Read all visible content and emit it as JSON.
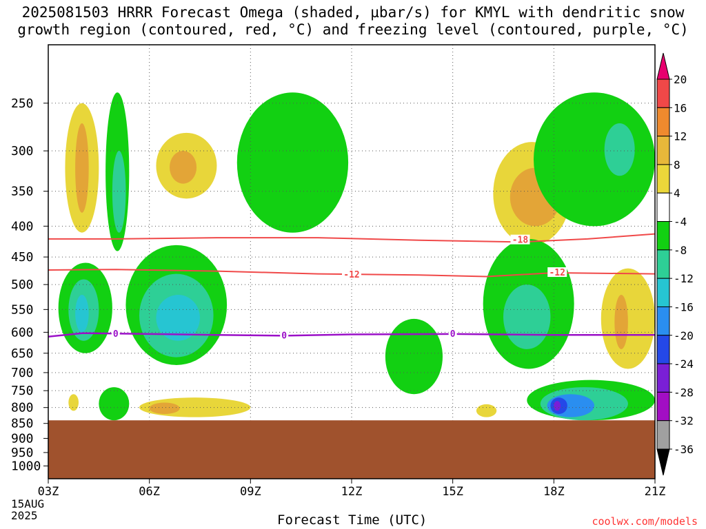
{
  "title_line1": "2025081503 HRRR Forecast Omega (shaded, µbar/s) for KMYL with dendritic snow",
  "title_line2": "growth region (contoured, red, °C) and freezing level (contoured, purple, °C)",
  "credit": "coolwx.com/models",
  "chart_data": {
    "type": "contour",
    "xlabel": "Forecast Time (UTC)",
    "x_ticks": [
      "03Z",
      "06Z",
      "09Z",
      "12Z",
      "15Z",
      "18Z",
      "21Z"
    ],
    "x_tick_hours": [
      3,
      6,
      9,
      12,
      15,
      18,
      21
    ],
    "x_start_label": [
      "15AUG",
      "2025"
    ],
    "x_range_hours": [
      3,
      21
    ],
    "y_ticks": [
      250,
      300,
      350,
      400,
      450,
      500,
      550,
      600,
      650,
      700,
      750,
      800,
      850,
      900,
      950,
      1000
    ],
    "y_range_hPa": [
      200,
      1050
    ],
    "y_scale": "log-pressure",
    "ground_below_hPa": 840,
    "ground_color": "#a0522d",
    "grid": true,
    "colorbar": {
      "labels": [
        "20",
        "16",
        "12",
        "8",
        "4",
        "-4",
        "-8",
        "-12",
        "-16",
        "-20",
        "-24",
        "-28",
        "-32",
        "-36"
      ],
      "colors": [
        "#e8006e",
        "#f04848",
        "#ef8a2e",
        "#e8b83a",
        "#ebd73a",
        "#ffffff",
        "#12d012",
        "#2ecf96",
        "#26c5d2",
        "#2a8ef0",
        "#2448e8",
        "#7a1fd6",
        "#a20ec4",
        "#a0a0a0",
        "#000000"
      ]
    },
    "omega_regions": [
      {
        "level": 4,
        "color": "#e8d63a",
        "hours": [
          3.5,
          4.5
        ],
        "hPa": [
          250,
          410
        ]
      },
      {
        "level": 8,
        "color": "#e3a537",
        "hours": [
          3.8,
          4.2
        ],
        "hPa": [
          270,
          380
        ]
      },
      {
        "level": -4,
        "color": "#12d012",
        "hours": [
          4.7,
          5.4
        ],
        "hPa": [
          240,
          440
        ]
      },
      {
        "level": -8,
        "color": "#2ecf96",
        "hours": [
          4.9,
          5.3
        ],
        "hPa": [
          300,
          410
        ]
      },
      {
        "level": 4,
        "color": "#e8d63a",
        "hours": [
          6.2,
          8.0
        ],
        "hPa": [
          280,
          360
        ]
      },
      {
        "level": 8,
        "color": "#e3a537",
        "hours": [
          6.6,
          7.4
        ],
        "hPa": [
          300,
          340
        ]
      },
      {
        "level": -4,
        "color": "#12d012",
        "hours": [
          8.6,
          11.9
        ],
        "hPa": [
          240,
          410
        ]
      },
      {
        "level": -4,
        "color": "#12d012",
        "hours": [
          3.3,
          4.9
        ],
        "hPa": [
          460,
          650
        ]
      },
      {
        "level": -8,
        "color": "#2ecf96",
        "hours": [
          3.6,
          4.5
        ],
        "hPa": [
          490,
          620
        ]
      },
      {
        "level": -12,
        "color": "#26c5d2",
        "hours": [
          3.8,
          4.2
        ],
        "hPa": [
          520,
          600
        ]
      },
      {
        "level": -4,
        "color": "#12d012",
        "hours": [
          5.3,
          8.3
        ],
        "hPa": [
          430,
          680
        ]
      },
      {
        "level": -8,
        "color": "#2ecf96",
        "hours": [
          5.7,
          7.9
        ],
        "hPa": [
          480,
          660
        ]
      },
      {
        "level": -12,
        "color": "#26c5d2",
        "hours": [
          6.2,
          7.5
        ],
        "hPa": [
          520,
          620
        ]
      },
      {
        "level": -4,
        "color": "#12d012",
        "hours": [
          13.0,
          14.7
        ],
        "hPa": [
          570,
          760
        ]
      },
      {
        "level": 4,
        "color": "#e8d63a",
        "hours": [
          16.2,
          18.5
        ],
        "hPa": [
          290,
          430
        ]
      },
      {
        "level": 8,
        "color": "#e3a537",
        "hours": [
          16.7,
          18.2
        ],
        "hPa": [
          320,
          400
        ]
      },
      {
        "level": -4,
        "color": "#12d012",
        "hours": [
          17.4,
          21.0
        ],
        "hPa": [
          240,
          400
        ]
      },
      {
        "level": -8,
        "color": "#2ecf96",
        "hours": [
          19.5,
          20.4
        ],
        "hPa": [
          270,
          330
        ]
      },
      {
        "level": 4,
        "color": "#e8d63a",
        "hours": [
          19.4,
          21.0
        ],
        "hPa": [
          470,
          690
        ]
      },
      {
        "level": 8,
        "color": "#e3a537",
        "hours": [
          19.8,
          20.2
        ],
        "hPa": [
          520,
          640
        ]
      },
      {
        "level": -4,
        "color": "#12d012",
        "hours": [
          15.9,
          18.6
        ],
        "hPa": [
          420,
          690
        ]
      },
      {
        "level": -8,
        "color": "#2ecf96",
        "hours": [
          16.5,
          17.9
        ],
        "hPa": [
          500,
          640
        ]
      },
      {
        "level": -4,
        "color": "#12d012",
        "hours": [
          17.2,
          21.0
        ],
        "hPa": [
          720,
          840
        ]
      },
      {
        "level": -8,
        "color": "#2ecf96",
        "hours": [
          17.6,
          20.2
        ],
        "hPa": [
          740,
          840
        ]
      },
      {
        "level": -16,
        "color": "#2a8ef0",
        "hours": [
          17.8,
          19.2
        ],
        "hPa": [
          760,
          830
        ]
      },
      {
        "level": -24,
        "color": "#2448e8",
        "hours": [
          17.9,
          18.4
        ],
        "hPa": [
          770,
          820
        ]
      },
      {
        "level": -28,
        "color": "#7a1fd6",
        "hours": [
          18.0,
          18.2
        ],
        "hPa": [
          780,
          810
        ]
      },
      {
        "level": 4,
        "color": "#e8d63a",
        "hours": [
          5.7,
          9.0
        ],
        "hPa": [
          770,
          830
        ]
      },
      {
        "level": 8,
        "color": "#e3a537",
        "hours": [
          6.0,
          6.9
        ],
        "hPa": [
          785,
          820
        ]
      },
      {
        "level": 4,
        "color": "#e8d63a",
        "hours": [
          3.6,
          3.9
        ],
        "hPa": [
          760,
          810
        ]
      },
      {
        "level": 4,
        "color": "#e8d63a",
        "hours": [
          15.7,
          16.3
        ],
        "hPa": [
          790,
          830
        ]
      },
      {
        "level": -4,
        "color": "#12d012",
        "hours": [
          4.5,
          5.4
        ],
        "hPa": [
          740,
          840
        ]
      }
    ],
    "red_contours": [
      {
        "label": "-18",
        "hPa": [
          420,
          420,
          418,
          418,
          422,
          425,
          420,
          412
        ],
        "hours": [
          3,
          5,
          8,
          11,
          14,
          17,
          19,
          21
        ]
      },
      {
        "label": "-12",
        "hPa": [
          473,
          472,
          475,
          480,
          482,
          485,
          478,
          480
        ],
        "hours": [
          3,
          5,
          8,
          11,
          14,
          16,
          18,
          21
        ]
      }
    ],
    "red_labels": [
      {
        "text": "-18",
        "hour": 17.0,
        "hPa": 422
      },
      {
        "text": "-12",
        "hour": 12.0,
        "hPa": 482
      },
      {
        "text": "-12",
        "hour": 18.1,
        "hPa": 478
      }
    ],
    "freezing_level": {
      "label": "0",
      "hours": [
        3,
        4,
        6,
        8,
        10,
        12,
        15,
        18,
        21
      ],
      "hPa": [
        610,
        602,
        604,
        606,
        608,
        605,
        604,
        606,
        606
      ]
    },
    "freezing_labels": [
      {
        "text": "0",
        "hour": 5.0,
        "hPa": 604
      },
      {
        "text": "0",
        "hour": 10.0,
        "hPa": 608
      },
      {
        "text": "0",
        "hour": 15.0,
        "hPa": 604
      }
    ]
  }
}
